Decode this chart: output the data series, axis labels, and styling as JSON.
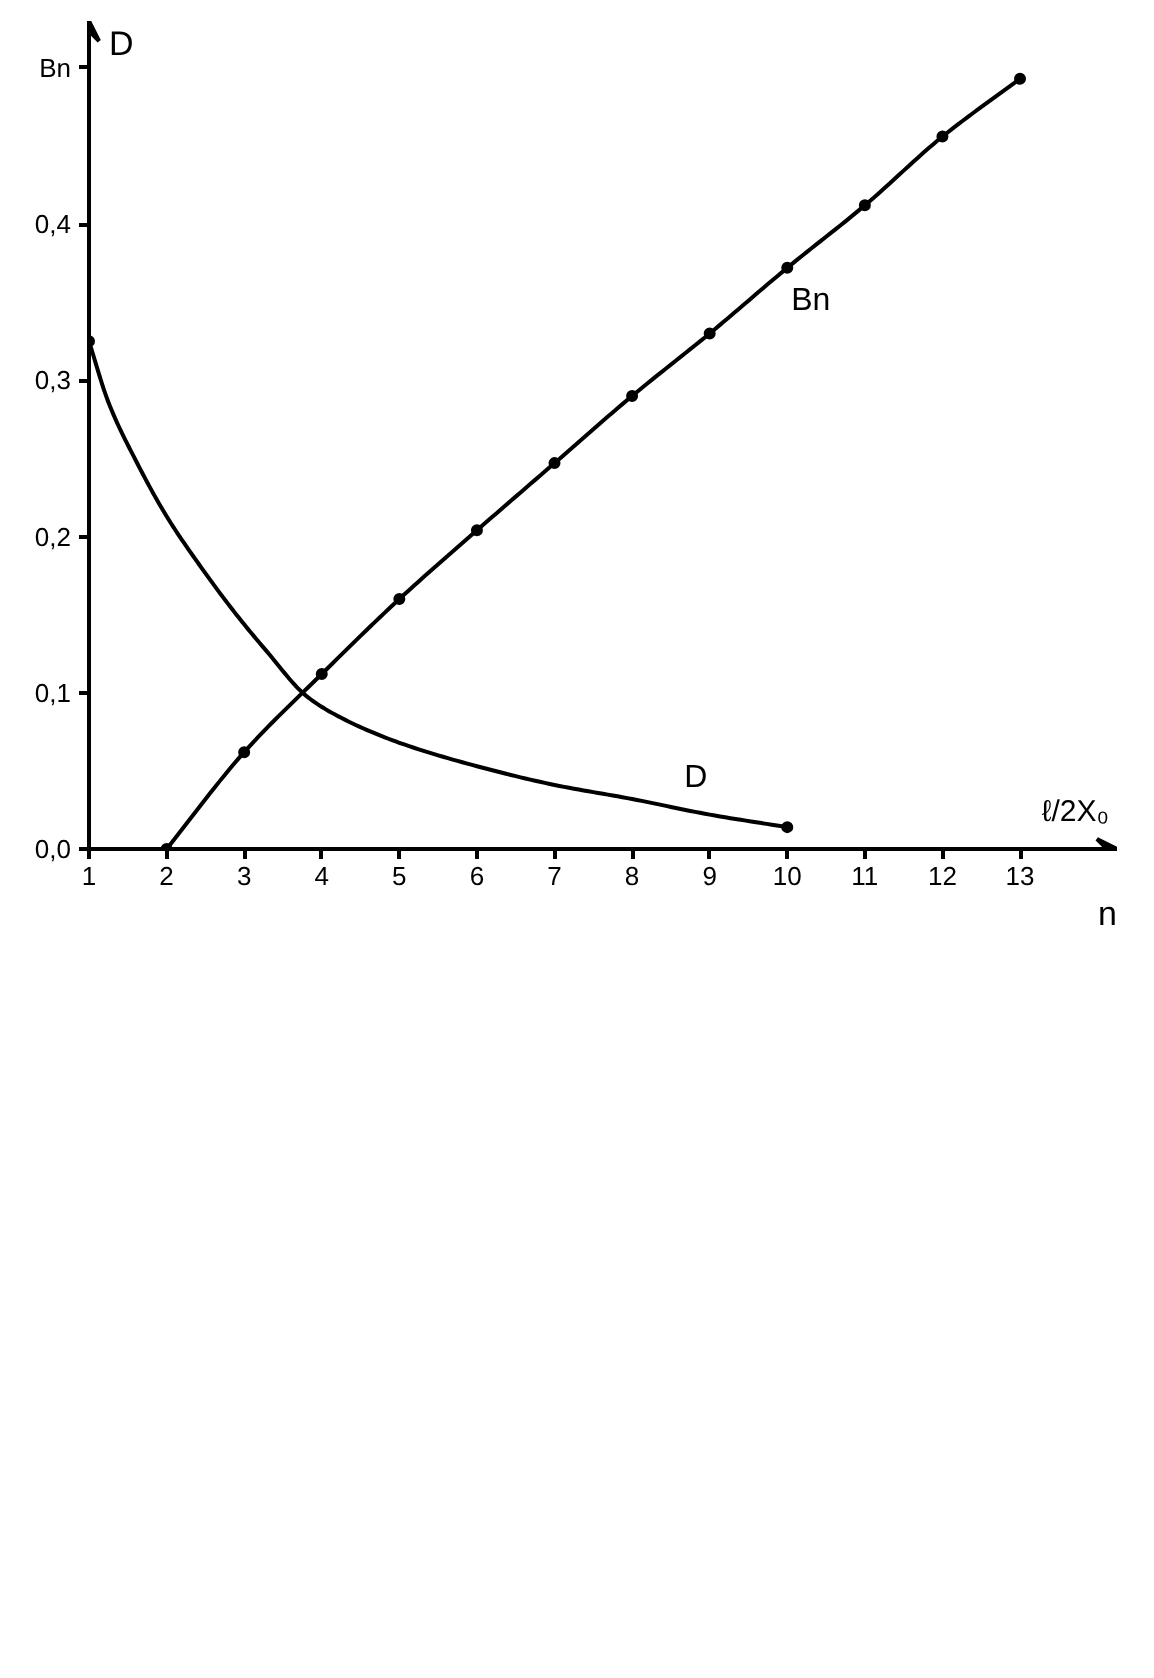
{
  "chart_data": {
    "type": "line",
    "ylabel": "D",
    "xlabel": "n",
    "annotations": [
      "ℓ/2X₀"
    ],
    "xlim": [
      1,
      14.25
    ],
    "xticks": [
      1,
      2,
      3,
      4,
      5,
      6,
      7,
      8,
      9,
      10,
      11,
      12,
      13
    ],
    "ylim": [
      0,
      0.53
    ],
    "yticks": [
      {
        "value": 0,
        "label": "0,0"
      },
      {
        "value": 0.1,
        "label": "0,1"
      },
      {
        "value": 0.2,
        "label": "0,2"
      },
      {
        "value": 0.3,
        "label": "0,3"
      },
      {
        "value": 0.4,
        "label": "0,4"
      },
      {
        "value": 0.5,
        "label": "Bn"
      }
    ],
    "grid": false,
    "series": [
      {
        "name": "Bn",
        "color": "#000000",
        "marker": "circle",
        "x": [
          2,
          3,
          4,
          5,
          6,
          7,
          8,
          9,
          10,
          11,
          12,
          13
        ],
        "values": [
          0,
          0.062,
          0.112,
          0.16,
          0.204,
          0.247,
          0.29,
          0.33,
          0.372,
          0.412,
          0.456,
          0.493
        ]
      },
      {
        "name": "D",
        "color": "#000000",
        "marker": "none",
        "x": [
          1,
          1.25,
          1.6,
          2,
          2.45,
          2.9,
          3.3,
          3.8,
          4.25,
          5,
          6,
          7,
          8,
          9,
          10
        ],
        "values": [
          0.325,
          0.286,
          0.249,
          0.213,
          0.18,
          0.15,
          0.126,
          0.098,
          0.084,
          0.068,
          0.053,
          0.041,
          0.032,
          0.022,
          0.014
        ]
      },
      {
        "type": "scatter",
        "color": "#000000",
        "marker": "circle",
        "x": [
          1,
          10
        ],
        "values": [
          0.325,
          0.014
        ]
      }
    ]
  }
}
